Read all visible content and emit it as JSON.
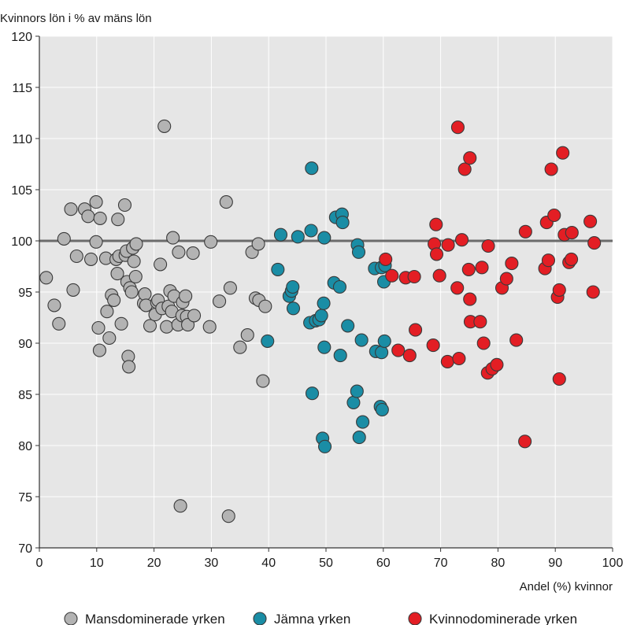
{
  "chart_data": {
    "type": "scatter",
    "title": "",
    "xlabel": "Andel (%) kvinnor",
    "ylabel": "Kvinnors lön i % av mäns lön",
    "xlim": [
      0,
      100
    ],
    "ylim": [
      70,
      120
    ],
    "xticks": [
      0,
      10,
      20,
      30,
      40,
      50,
      60,
      70,
      80,
      90,
      100
    ],
    "yticks": [
      70,
      75,
      80,
      85,
      90,
      95,
      100,
      105,
      110,
      115,
      120
    ],
    "grid": true,
    "reference_line": 100,
    "legend_position": "bottom",
    "series": [
      {
        "name": "Mansdominerade yrken",
        "color": "#b3b3b3",
        "points": [
          [
            1.2,
            96.4
          ],
          [
            2.6,
            93.7
          ],
          [
            3.4,
            91.9
          ],
          [
            4.3,
            100.2
          ],
          [
            5.5,
            103.1
          ],
          [
            5.9,
            95.2
          ],
          [
            6.5,
            98.5
          ],
          [
            7.9,
            103.1
          ],
          [
            8.5,
            102.4
          ],
          [
            9,
            98.2
          ],
          [
            9.9,
            103.8
          ],
          [
            9.9,
            99.9
          ],
          [
            10.3,
            91.5
          ],
          [
            10.5,
            89.3
          ],
          [
            10.6,
            102.2
          ],
          [
            11.6,
            98.3
          ],
          [
            11.8,
            93.1
          ],
          [
            12.2,
            90.5
          ],
          [
            12.6,
            94.7
          ],
          [
            13,
            94.2
          ],
          [
            13.4,
            98.2
          ],
          [
            13.6,
            96.8
          ],
          [
            13.7,
            102.1
          ],
          [
            13.9,
            98.5
          ],
          [
            14.3,
            91.9
          ],
          [
            14.9,
            103.5
          ],
          [
            15,
            98.6
          ],
          [
            15.2,
            99
          ],
          [
            15.3,
            96
          ],
          [
            15.5,
            88.7
          ],
          [
            15.6,
            87.7
          ],
          [
            15.8,
            95.4
          ],
          [
            16.1,
            95
          ],
          [
            16.3,
            99.3
          ],
          [
            16.5,
            98
          ],
          [
            16.8,
            96.5
          ],
          [
            16.9,
            99.7
          ],
          [
            18.2,
            93.9
          ],
          [
            18.4,
            94.8
          ],
          [
            18.6,
            93.7
          ],
          [
            19.3,
            91.7
          ],
          [
            20.2,
            92.8
          ],
          [
            20.5,
            94
          ],
          [
            20.7,
            94.2
          ],
          [
            21.1,
            97.7
          ],
          [
            21.4,
            93.4
          ],
          [
            21.8,
            111.2
          ],
          [
            22.2,
            91.6
          ],
          [
            22.5,
            93.6
          ],
          [
            22.8,
            95.1
          ],
          [
            23.1,
            93.1
          ],
          [
            23.3,
            100.3
          ],
          [
            23.5,
            94.6
          ],
          [
            24.2,
            91.8
          ],
          [
            24.3,
            98.9
          ],
          [
            24.6,
            74.1
          ],
          [
            24.9,
            92.7
          ],
          [
            25,
            94
          ],
          [
            25.5,
            94.6
          ],
          [
            25.7,
            92.6
          ],
          [
            25.9,
            91.8
          ],
          [
            26.8,
            98.8
          ],
          [
            27,
            92.7
          ],
          [
            29.7,
            91.6
          ],
          [
            29.9,
            99.9
          ],
          [
            31.4,
            94.1
          ],
          [
            32.6,
            103.8
          ],
          [
            33,
            73.1
          ],
          [
            33.3,
            95.4
          ],
          [
            35,
            89.6
          ],
          [
            36.3,
            90.8
          ],
          [
            37.1,
            98.9
          ],
          [
            37.7,
            94.4
          ],
          [
            38.2,
            99.7
          ],
          [
            38.3,
            94.2
          ],
          [
            39,
            86.3
          ],
          [
            39.4,
            93.6
          ]
        ]
      },
      {
        "name": "Jämna yrken",
        "color": "#1a8da5",
        "points": [
          [
            39.8,
            90.2
          ],
          [
            41.6,
            97.2
          ],
          [
            42.1,
            100.6
          ],
          [
            43.6,
            94.6
          ],
          [
            44,
            95.1
          ],
          [
            44.2,
            95.5
          ],
          [
            44.3,
            93.4
          ],
          [
            45.1,
            100.4
          ],
          [
            47.2,
            92
          ],
          [
            47.4,
            101
          ],
          [
            47.5,
            107.1
          ],
          [
            47.6,
            85.1
          ],
          [
            48.2,
            92.2
          ],
          [
            48.8,
            92.3
          ],
          [
            49.2,
            92.7
          ],
          [
            49.4,
            80.7
          ],
          [
            49.6,
            93.9
          ],
          [
            49.7,
            100.3
          ],
          [
            49.7,
            89.6
          ],
          [
            49.8,
            79.9
          ],
          [
            51.4,
            95.9
          ],
          [
            51.7,
            102.3
          ],
          [
            52.4,
            95.5
          ],
          [
            52.5,
            88.8
          ],
          [
            52.8,
            102.6
          ],
          [
            52.9,
            101.8
          ],
          [
            53.8,
            91.7
          ],
          [
            54.8,
            84.2
          ],
          [
            55.4,
            85.3
          ],
          [
            55.5,
            99.6
          ],
          [
            55.7,
            98.9
          ],
          [
            55.8,
            80.8
          ],
          [
            56.2,
            90.3
          ],
          [
            56.4,
            82.3
          ],
          [
            58.5,
            97.3
          ],
          [
            58.7,
            89.2
          ],
          [
            59.5,
            83.8
          ],
          [
            59.7,
            89.1
          ],
          [
            59.7,
            97.4
          ],
          [
            59.8,
            83.5
          ],
          [
            60.1,
            96
          ],
          [
            60.2,
            90.2
          ],
          [
            60.3,
            97.6
          ]
        ]
      },
      {
        "name": "Kvinnodominerade yrken",
        "color": "#e31e24",
        "points": [
          [
            60.4,
            98.2
          ],
          [
            61.5,
            96.6
          ],
          [
            62.6,
            89.3
          ],
          [
            63.9,
            96.4
          ],
          [
            64.6,
            88.8
          ],
          [
            65.4,
            96.5
          ],
          [
            65.6,
            91.3
          ],
          [
            68.7,
            89.8
          ],
          [
            68.9,
            99.7
          ],
          [
            69.2,
            101.6
          ],
          [
            69.3,
            98.7
          ],
          [
            69.8,
            96.6
          ],
          [
            71.2,
            88.2
          ],
          [
            71.3,
            99.6
          ],
          [
            72.9,
            95.4
          ],
          [
            73,
            111.1
          ],
          [
            73.2,
            88.5
          ],
          [
            73.7,
            100.1
          ],
          [
            74.2,
            107
          ],
          [
            74.9,
            97.2
          ],
          [
            75.1,
            108.1
          ],
          [
            75.1,
            94.3
          ],
          [
            75.2,
            92.1
          ],
          [
            76.9,
            92.1
          ],
          [
            77.2,
            97.4
          ],
          [
            77.5,
            90
          ],
          [
            78.2,
            87.1
          ],
          [
            78.3,
            99.5
          ],
          [
            79,
            87.5
          ],
          [
            79.8,
            87.9
          ],
          [
            80.7,
            95.4
          ],
          [
            81.5,
            96.3
          ],
          [
            82.4,
            97.8
          ],
          [
            83.2,
            90.3
          ],
          [
            84.7,
            80.4
          ],
          [
            84.8,
            100.9
          ],
          [
            88.2,
            97.3
          ],
          [
            88.5,
            101.8
          ],
          [
            88.8,
            98.1
          ],
          [
            89.3,
            107
          ],
          [
            89.8,
            102.5
          ],
          [
            90.4,
            94.5
          ],
          [
            90.7,
            95.2
          ],
          [
            90.7,
            86.5
          ],
          [
            91.3,
            108.6
          ],
          [
            91.6,
            100.6
          ],
          [
            92.4,
            97.9
          ],
          [
            92.8,
            98.2
          ],
          [
            92.9,
            100.8
          ],
          [
            96.1,
            101.9
          ],
          [
            96.6,
            95
          ],
          [
            96.8,
            99.8
          ]
        ]
      }
    ]
  }
}
